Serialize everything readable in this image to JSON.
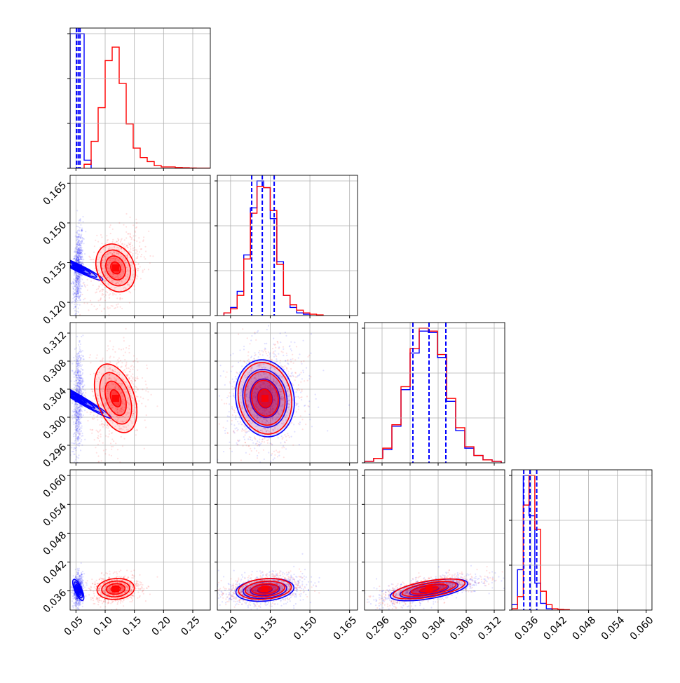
{
  "chart_data": {
    "type": "corner",
    "colors": {
      "blue": "#0000ff",
      "red": "#ff0000",
      "grid": "#b0b0b0",
      "axis": "#000000"
    },
    "params": [
      {
        "range": [
          0.04,
          0.28
        ],
        "ticks": [
          0.05,
          0.1,
          0.15,
          0.2,
          0.25
        ],
        "tick_labels": [
          "0.05",
          "0.10",
          "0.15",
          "0.20",
          "0.25"
        ]
      },
      {
        "range": [
          0.115,
          0.168
        ],
        "ticks": [
          0.12,
          0.135,
          0.15,
          0.165
        ],
        "tick_labels": [
          "0.120",
          "0.135",
          "0.150",
          "0.165"
        ]
      },
      {
        "range": [
          0.2935,
          0.3135
        ],
        "ticks": [
          0.296,
          0.3,
          0.304,
          0.308,
          0.312
        ],
        "tick_labels": [
          "0.296",
          "0.300",
          "0.304",
          "0.308",
          "0.312"
        ]
      },
      {
        "range": [
          0.032,
          0.0612
        ],
        "ticks": [
          0.036,
          0.042,
          0.048,
          0.054,
          0.06
        ],
        "tick_labels": [
          "0.036",
          "0.042",
          "0.048",
          "0.054",
          "0.060"
        ]
      }
    ],
    "series": [
      {
        "name": "",
        "color": "blue",
        "center": [
          0.054,
          0.133,
          0.3027,
          0.0362
        ],
        "sigma": [
          0.003,
          0.0055,
          0.0028,
          0.0012
        ],
        "quantiles": [
          [
            0.051,
            0.054,
            0.057
          ],
          [
            0.128,
            0.132,
            0.1365
          ],
          [
            0.3004,
            0.3027,
            0.3051
          ],
          [
            0.0345,
            0.0358,
            0.0372
          ]
        ],
        "hist": [
          {
            "edges": [
              0.04,
              0.052,
              0.064,
              0.076
            ],
            "counts": [
              100,
              100,
              6
            ]
          },
          {
            "edges": [
              0.1175,
              0.12,
              0.1225,
              0.125,
              0.1275,
              0.13,
              0.1325,
              0.135,
              0.1375,
              0.14,
              0.1425,
              0.145,
              0.1475,
              0.15
            ],
            "counts": [
              2,
              6,
              18,
              45,
              80,
              100,
              95,
              72,
              40,
              15,
              6,
              2,
              1
            ]
          },
          {
            "edges": [
              0.2935,
              0.2948,
              0.2961,
              0.2974,
              0.2987,
              0.3,
              0.3013,
              0.3026,
              0.3039,
              0.3052,
              0.3065,
              0.3078,
              0.3091,
              0.3104,
              0.3117,
              0.313
            ],
            "counts": [
              1,
              3,
              9,
              25,
              50,
              75,
              90,
              89,
              72,
              42,
              22,
              10,
              5,
              2,
              1
            ]
          },
          {
            "edges": [
              0.032,
              0.0332,
              0.0344,
              0.0356,
              0.0368,
              0.038,
              0.0392,
              0.0404
            ],
            "counts": [
              4,
              30,
              100,
              70,
              20,
              5,
              1
            ]
          }
        ]
      },
      {
        "name": "",
        "color": "red",
        "center": [
          0.118,
          0.133,
          0.3027,
          0.0364
        ],
        "sigma": [
          0.016,
          0.005,
          0.0026,
          0.0011
        ],
        "hist": [
          {
            "edges": [
              0.064,
              0.076,
              0.088,
              0.1,
              0.112,
              0.124,
              0.136,
              0.148,
              0.16,
              0.172,
              0.184,
              0.196,
              0.208,
              0.22,
              0.232,
              0.244,
              0.256,
              0.268,
              0.28
            ],
            "counts": [
              3,
              20,
              45,
              80,
              90,
              63,
              33,
              15,
              8,
              5,
              2,
              1,
              1,
              0.6,
              0.4,
              0.2,
              0.1,
              0.1
            ]
          },
          {
            "edges": [
              0.1175,
              0.12,
              0.1225,
              0.125,
              0.1275,
              0.13,
              0.1325,
              0.135,
              0.1375,
              0.14,
              0.1425,
              0.145,
              0.1475,
              0.15,
              0.1525,
              0.155
            ],
            "counts": [
              2,
              5,
              15,
              42,
              76,
              96,
              95,
              78,
              38,
              15,
              8,
              4,
              2,
              1,
              0.5
            ]
          },
          {
            "edges": [
              0.2935,
              0.2948,
              0.2961,
              0.2974,
              0.2987,
              0.3,
              0.3013,
              0.3026,
              0.3039,
              0.3052,
              0.3065,
              0.3078,
              0.3091,
              0.3104,
              0.3117,
              0.313
            ],
            "counts": [
              1,
              3,
              10,
              26,
              52,
              78,
              92,
              90,
              74,
              44,
              24,
              11,
              5,
              2,
              1
            ]
          },
          {
            "edges": [
              0.032,
              0.0332,
              0.0344,
              0.0356,
              0.0368,
              0.038,
              0.0392,
              0.0404,
              0.0416,
              0.0428,
              0.044
            ],
            "counts": [
              1,
              10,
              78,
              100,
              60,
              14,
              4,
              1,
              0.5,
              0.3
            ]
          }
        ]
      }
    ],
    "grid": true
  }
}
